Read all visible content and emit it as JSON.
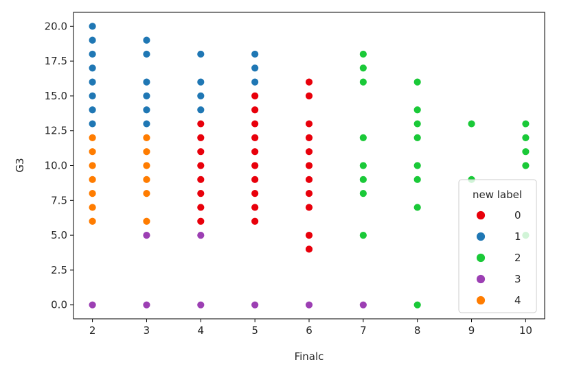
{
  "chart_data": {
    "type": "scatter",
    "title": "",
    "xlabel": "Finalc",
    "ylabel": "G3",
    "xlim": [
      1.65,
      10.35
    ],
    "ylim": [
      -1.0,
      21.0
    ],
    "x_ticks": [
      2,
      3,
      4,
      5,
      6,
      7,
      8,
      9,
      10
    ],
    "x_tick_labels": [
      "2",
      "3",
      "4",
      "5",
      "6",
      "7",
      "8",
      "9",
      "10"
    ],
    "y_ticks": [
      0.0,
      2.5,
      5.0,
      7.5,
      10.0,
      12.5,
      15.0,
      17.5,
      20.0
    ],
    "y_tick_labels": [
      "0.0",
      "2.5",
      "5.0",
      "7.5",
      "10.0",
      "12.5",
      "15.0",
      "17.5",
      "20.0"
    ],
    "grid": false,
    "legend": {
      "title": "new label",
      "placement": "lower-right",
      "entries": [
        "0",
        "1",
        "2",
        "3",
        "4"
      ]
    },
    "series": [
      {
        "name": "0",
        "color": "#e8000b",
        "points": [
          [
            4,
            6
          ],
          [
            4,
            7
          ],
          [
            4,
            8
          ],
          [
            4,
            9
          ],
          [
            4,
            10
          ],
          [
            4,
            11
          ],
          [
            4,
            12
          ],
          [
            4,
            13
          ],
          [
            5,
            6
          ],
          [
            5,
            7
          ],
          [
            5,
            8
          ],
          [
            5,
            9
          ],
          [
            5,
            10
          ],
          [
            5,
            11
          ],
          [
            5,
            12
          ],
          [
            5,
            13
          ],
          [
            5,
            14
          ],
          [
            5,
            15
          ],
          [
            6,
            4
          ],
          [
            6,
            5
          ],
          [
            6,
            7
          ],
          [
            6,
            8
          ],
          [
            6,
            9
          ],
          [
            6,
            10
          ],
          [
            6,
            11
          ],
          [
            6,
            12
          ],
          [
            6,
            13
          ],
          [
            6,
            15
          ],
          [
            6,
            16
          ]
        ]
      },
      {
        "name": "1",
        "color": "#1f77b4",
        "points": [
          [
            2,
            13
          ],
          [
            2,
            14
          ],
          [
            2,
            15
          ],
          [
            2,
            16
          ],
          [
            2,
            17
          ],
          [
            2,
            18
          ],
          [
            2,
            19
          ],
          [
            2,
            20
          ],
          [
            3,
            13
          ],
          [
            3,
            14
          ],
          [
            3,
            15
          ],
          [
            3,
            16
          ],
          [
            3,
            18
          ],
          [
            3,
            19
          ],
          [
            4,
            14
          ],
          [
            4,
            15
          ],
          [
            4,
            16
          ],
          [
            4,
            18
          ],
          [
            5,
            16
          ],
          [
            5,
            17
          ],
          [
            5,
            18
          ]
        ]
      },
      {
        "name": "2",
        "color": "#1ac938",
        "points": [
          [
            7,
            5
          ],
          [
            7,
            8
          ],
          [
            7,
            9
          ],
          [
            7,
            10
          ],
          [
            7,
            12
          ],
          [
            7,
            16
          ],
          [
            7,
            17
          ],
          [
            7,
            18
          ],
          [
            8,
            0
          ],
          [
            8,
            7
          ],
          [
            8,
            9
          ],
          [
            8,
            10
          ],
          [
            8,
            12
          ],
          [
            8,
            13
          ],
          [
            8,
            14
          ],
          [
            8,
            16
          ],
          [
            9,
            9
          ],
          [
            9,
            13
          ],
          [
            10,
            5
          ],
          [
            10,
            10
          ],
          [
            10,
            11
          ],
          [
            10,
            12
          ],
          [
            10,
            13
          ]
        ]
      },
      {
        "name": "3",
        "color": "#9c3fb3",
        "points": [
          [
            2,
            0
          ],
          [
            3,
            0
          ],
          [
            3,
            5
          ],
          [
            4,
            0
          ],
          [
            4,
            5
          ],
          [
            5,
            0
          ],
          [
            6,
            0
          ],
          [
            7,
            0
          ]
        ]
      },
      {
        "name": "4",
        "color": "#ff7c00",
        "points": [
          [
            2,
            6
          ],
          [
            2,
            7
          ],
          [
            2,
            8
          ],
          [
            2,
            9
          ],
          [
            2,
            10
          ],
          [
            2,
            11
          ],
          [
            2,
            12
          ],
          [
            3,
            6
          ],
          [
            3,
            8
          ],
          [
            3,
            9
          ],
          [
            3,
            10
          ],
          [
            3,
            11
          ],
          [
            3,
            12
          ]
        ]
      }
    ]
  }
}
